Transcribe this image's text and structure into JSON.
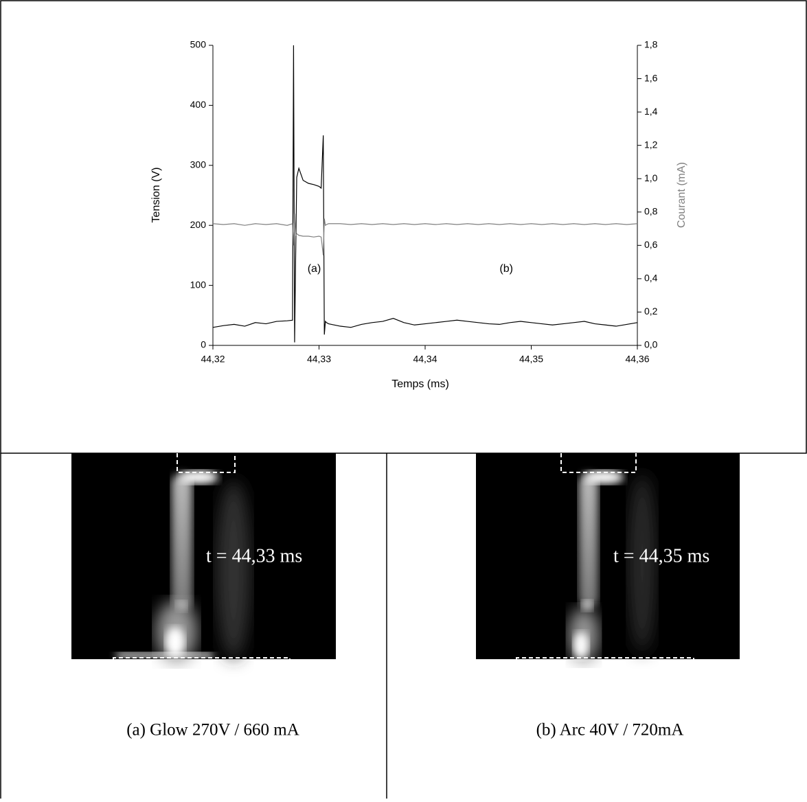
{
  "chart_data": {
    "type": "line",
    "xlabel": "Temps (ms)",
    "ylabel": "Tension (V)",
    "y2label": "Courant (mA)",
    "x": [
      44.32,
      44.321,
      44.322,
      44.323,
      44.324,
      44.325,
      44.326,
      44.327,
      44.3275,
      44.3276,
      44.3277,
      44.3278,
      44.3279,
      44.3281,
      44.3285,
      44.329,
      44.3295,
      44.33,
      44.3302,
      44.3304,
      44.3305,
      44.3306,
      44.3307,
      44.3309,
      44.332,
      44.333,
      44.334,
      44.335,
      44.336,
      44.337,
      44.338,
      44.339,
      44.34,
      44.341,
      44.342,
      44.343,
      44.344,
      44.345,
      44.346,
      44.347,
      44.348,
      44.349,
      44.35,
      44.351,
      44.352,
      44.353,
      44.354,
      44.355,
      44.356,
      44.357,
      44.358,
      44.359,
      44.36
    ],
    "series": [
      {
        "name": "Tension",
        "color": "#000000",
        "values": [
          30,
          33,
          35,
          32,
          38,
          36,
          40,
          41,
          42,
          500,
          5,
          150,
          280,
          295,
          275,
          270,
          268,
          265,
          262,
          350,
          18,
          40,
          38,
          36,
          32,
          30,
          35,
          38,
          40,
          45,
          38,
          34,
          36,
          38,
          40,
          42,
          40,
          38,
          36,
          35,
          38,
          40,
          38,
          36,
          34,
          36,
          38,
          40,
          36,
          34,
          32,
          35,
          38
        ]
      },
      {
        "name": "Courant",
        "color": "#808080",
        "axis": "y2",
        "values": [
          0.73,
          0.725,
          0.73,
          0.72,
          0.73,
          0.725,
          0.73,
          0.72,
          0.73,
          0.6,
          0.79,
          0.66,
          0.67,
          0.66,
          0.655,
          0.655,
          0.65,
          0.655,
          0.65,
          0.54,
          0.76,
          0.72,
          0.725,
          0.73,
          0.73,
          0.725,
          0.73,
          0.725,
          0.73,
          0.725,
          0.73,
          0.725,
          0.73,
          0.725,
          0.73,
          0.725,
          0.73,
          0.725,
          0.73,
          0.725,
          0.73,
          0.725,
          0.73,
          0.725,
          0.73,
          0.725,
          0.73,
          0.725,
          0.73,
          0.725,
          0.73,
          0.725,
          0.73
        ]
      }
    ],
    "xlim": [
      44.32,
      44.36
    ],
    "xticks": [
      {
        "value": 44.32,
        "label": "44,32"
      },
      {
        "value": 44.33,
        "label": "44,33"
      },
      {
        "value": 44.34,
        "label": "44,34"
      },
      {
        "value": 44.35,
        "label": "44,35"
      },
      {
        "value": 44.36,
        "label": "44,36"
      }
    ],
    "ylim": [
      0,
      500
    ],
    "yticks": [
      0,
      100,
      200,
      300,
      400,
      500
    ],
    "y2lim": [
      0,
      1.8
    ],
    "y2ticks": [
      {
        "value": 0,
        "label": "0,0"
      },
      {
        "value": 0.2,
        "label": "0,2"
      },
      {
        "value": 0.4,
        "label": "0,4"
      },
      {
        "value": 0.6,
        "label": "0,6"
      },
      {
        "value": 0.8,
        "label": "0,8"
      },
      {
        "value": 1.0,
        "label": "1,0"
      },
      {
        "value": 1.2,
        "label": "1,2"
      },
      {
        "value": 1.4,
        "label": "1,4"
      },
      {
        "value": 1.6,
        "label": "1,6"
      },
      {
        "value": 1.8,
        "label": "1,8"
      }
    ],
    "annotations": [
      {
        "text": "(a)",
        "x": 44.3278,
        "y": 100
      },
      {
        "text": "(b)",
        "x": 44.3459,
        "y": 100
      }
    ]
  },
  "images": [
    {
      "overlay": "t = 44,33 ms",
      "caption": "(a)  Glow 270V / 660 mA"
    },
    {
      "overlay": "t = 44,35 ms",
      "caption": "(b) Arc  40V / 720mA"
    }
  ]
}
